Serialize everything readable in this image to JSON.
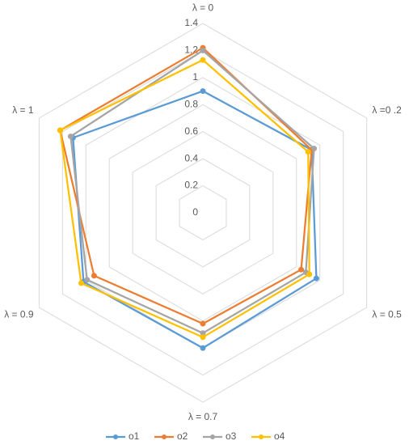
{
  "chart_data": {
    "type": "radar",
    "categories": [
      "λ = 0",
      "λ =0 .2",
      "λ = 0.5",
      "λ = 0.7",
      "λ = 0.9",
      "λ = 1"
    ],
    "series": [
      {
        "name": "o1",
        "color": "#5b9bd5",
        "values": [
          0.9,
          0.93,
          0.97,
          1.0,
          1.02,
          1.11
        ]
      },
      {
        "name": "o2",
        "color": "#ed7d31",
        "values": [
          1.22,
          0.93,
          0.84,
          0.82,
          0.93,
          1.22
        ]
      },
      {
        "name": "o3",
        "color": "#a5a5a5",
        "values": [
          1.2,
          0.95,
          0.88,
          0.89,
          0.99,
          1.13
        ]
      },
      {
        "name": "o4",
        "color": "#ffc000",
        "values": [
          1.13,
          0.9,
          0.91,
          0.92,
          1.04,
          1.22
        ]
      }
    ],
    "ylim": [
      0,
      1.4
    ],
    "yticks": [
      0,
      0.2,
      0.4,
      0.6,
      0.8,
      1,
      1.2,
      1.4
    ],
    "grid": true,
    "legend": "bottom"
  }
}
